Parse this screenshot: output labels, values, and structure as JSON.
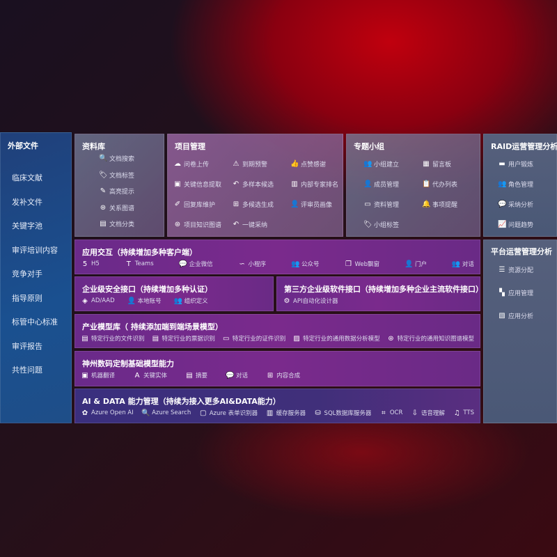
{
  "sidebar": {
    "title": "外部文件",
    "items": [
      "临床文献",
      "发补文件",
      "关键字池",
      "审评培训内容",
      "竞争对手",
      "指导原则",
      "标管中心标准",
      "审评报告",
      "共性问题"
    ]
  },
  "library": {
    "title": "资料库",
    "items": [
      {
        "icon": "document-search-icon",
        "g": "🔍",
        "label": "文档搜索"
      },
      {
        "icon": "tag-icon",
        "g": "🏷",
        "label": "文档标签"
      },
      {
        "icon": "pen-icon",
        "g": "✎",
        "label": "高亮提示"
      },
      {
        "icon": "graph-icon",
        "g": "⊛",
        "label": "关系图谱"
      },
      {
        "icon": "document-icon",
        "g": "▤",
        "label": "文档分类"
      }
    ]
  },
  "project": {
    "title": "项目管理",
    "items": [
      {
        "icon": "cloud-upload-icon",
        "g": "☁",
        "label": "问卷上传"
      },
      {
        "icon": "alarm-icon",
        "g": "⚠",
        "label": "到期预警"
      },
      {
        "icon": "thumbs-up-icon",
        "g": "👍",
        "label": "点赞感谢"
      },
      {
        "icon": "window-icon",
        "g": "▣",
        "label": "关键信息提取"
      },
      {
        "icon": "reply-icon",
        "g": "↶",
        "label": "多样本候选"
      },
      {
        "icon": "ranking-icon",
        "g": "▥",
        "label": "内部专家排名"
      },
      {
        "icon": "edit-icon",
        "g": "✐",
        "label": "回复库维护"
      },
      {
        "icon": "puzzle-icon",
        "g": "⊞",
        "label": "多候选生成"
      },
      {
        "icon": "user-icon",
        "g": "👤",
        "label": "评审员画像"
      },
      {
        "icon": "graph-icon",
        "g": "⊛",
        "label": "项目知识图谱"
      },
      {
        "icon": "reply-icon",
        "g": "↶",
        "label": "一键采纳"
      }
    ]
  },
  "group": {
    "title": "专题小组",
    "items": [
      {
        "icon": "users-icon",
        "g": "👥",
        "label": "小组建立"
      },
      {
        "icon": "bbs-icon",
        "g": "▦",
        "label": "留言板"
      },
      {
        "icon": "user-add-icon",
        "g": "👤",
        "label": "成员管理"
      },
      {
        "icon": "clipboard-icon",
        "g": "📋",
        "label": "代办列表"
      },
      {
        "icon": "folder-icon",
        "g": "▭",
        "label": "资料管理"
      },
      {
        "icon": "bell-icon",
        "g": "🔔",
        "label": "事项提醒"
      },
      {
        "icon": "tag-icon",
        "g": "🏷",
        "label": "小组标签"
      }
    ]
  },
  "raid": {
    "title": "RAID运营管理分析",
    "items": [
      {
        "icon": "id-card-icon",
        "g": "▬",
        "label": "用户锻炼"
      },
      {
        "icon": "users-icon",
        "g": "👥",
        "label": "角色管理"
      },
      {
        "icon": "qa-icon",
        "g": "💬",
        "label": "采纳分析"
      },
      {
        "icon": "trend-icon",
        "g": "📈",
        "label": "问题趋势"
      }
    ]
  },
  "platform": {
    "title": "平台运营管理分析",
    "items": [
      {
        "icon": "list-icon",
        "g": "☰",
        "label": "资源分配"
      },
      {
        "icon": "apps-icon",
        "g": "▚",
        "label": "应用管理"
      },
      {
        "icon": "analysis-icon",
        "g": "▧",
        "label": "应用分析"
      }
    ]
  },
  "interaction": {
    "title": "应用交互（持续增加多种客户端）",
    "items": [
      {
        "icon": "html5-icon",
        "g": "5",
        "label": "H5"
      },
      {
        "icon": "teams-icon",
        "g": "T",
        "label": "Teams"
      },
      {
        "icon": "wechat-work-icon",
        "g": "💬",
        "label": "企业微信"
      },
      {
        "icon": "mini-program-icon",
        "g": "∽",
        "label": "小程序"
      },
      {
        "icon": "official-account-icon",
        "g": "👥",
        "label": "公众号"
      },
      {
        "icon": "web-window-icon",
        "g": "❐",
        "label": "Web飘窗"
      },
      {
        "icon": "portal-icon",
        "g": "👤",
        "label": "门户"
      },
      {
        "icon": "chat-users-icon",
        "g": "👥",
        "label": "对话"
      }
    ]
  },
  "security": {
    "title": "企业级安全接口（持续增加多种认证）",
    "items": [
      {
        "icon": "ad-icon",
        "g": "◈",
        "label": "AD/AAD"
      },
      {
        "icon": "local-account-icon",
        "g": "👤",
        "label": "本地账号"
      },
      {
        "icon": "org-icon",
        "g": "👥",
        "label": "组织定义"
      }
    ]
  },
  "thirdparty": {
    "title": "第三方企业级软件接口（持续增加多种企业主流软件接口）",
    "items": [
      {
        "icon": "api-gear-icon",
        "g": "⚙",
        "label": "API自动化设计器"
      }
    ]
  },
  "industry": {
    "title": "产业模型库（ 持续添加端到端场景模型）",
    "items": [
      {
        "icon": "file-icon",
        "g": "▤",
        "label": "特定行业的文件识别"
      },
      {
        "icon": "receipt-icon",
        "g": "▤",
        "label": "特定行业的票据识别"
      },
      {
        "icon": "id-card-icon",
        "g": "▭",
        "label": "特定行业的证件识别"
      },
      {
        "icon": "chart-icon",
        "g": "▨",
        "label": "特定行业的通用数据分析模型"
      },
      {
        "icon": "graph-icon",
        "g": "⊛",
        "label": "特定行业的通用知识图谱模型"
      }
    ]
  },
  "base": {
    "title": "神州数码定制基础模型能力",
    "items": [
      {
        "icon": "translate-icon",
        "g": "▣",
        "label": "机器翻译"
      },
      {
        "icon": "entity-icon",
        "g": "A",
        "label": "关键实体"
      },
      {
        "icon": "summary-icon",
        "g": "▤",
        "label": "摘要"
      },
      {
        "icon": "chat-icon",
        "g": "💬",
        "label": "对话"
      },
      {
        "icon": "compose-icon",
        "g": "⊞",
        "label": "内容合成"
      }
    ]
  },
  "aidata": {
    "title": "AI & DATA 能力管理（持续为接入更多AI&DATA能力）",
    "items": [
      {
        "icon": "openai-icon",
        "g": "✿",
        "label": "Azure Open AI"
      },
      {
        "icon": "search-icon",
        "g": "🔍",
        "label": "Azure Search"
      },
      {
        "icon": "form-recognizer-icon",
        "g": "▢",
        "label": "Azure 表单识别器"
      },
      {
        "icon": "cache-server-icon",
        "g": "▥",
        "label": "缓存服务器"
      },
      {
        "icon": "sql-icon",
        "g": "⛁",
        "label": "SQL数据库服务器"
      },
      {
        "icon": "ocr-icon",
        "g": "⌗",
        "label": "OCR"
      },
      {
        "icon": "speech-icon",
        "g": "⇩",
        "label": "语音理解"
      },
      {
        "icon": "tts-icon",
        "g": "♫",
        "label": "TTS"
      }
    ]
  }
}
